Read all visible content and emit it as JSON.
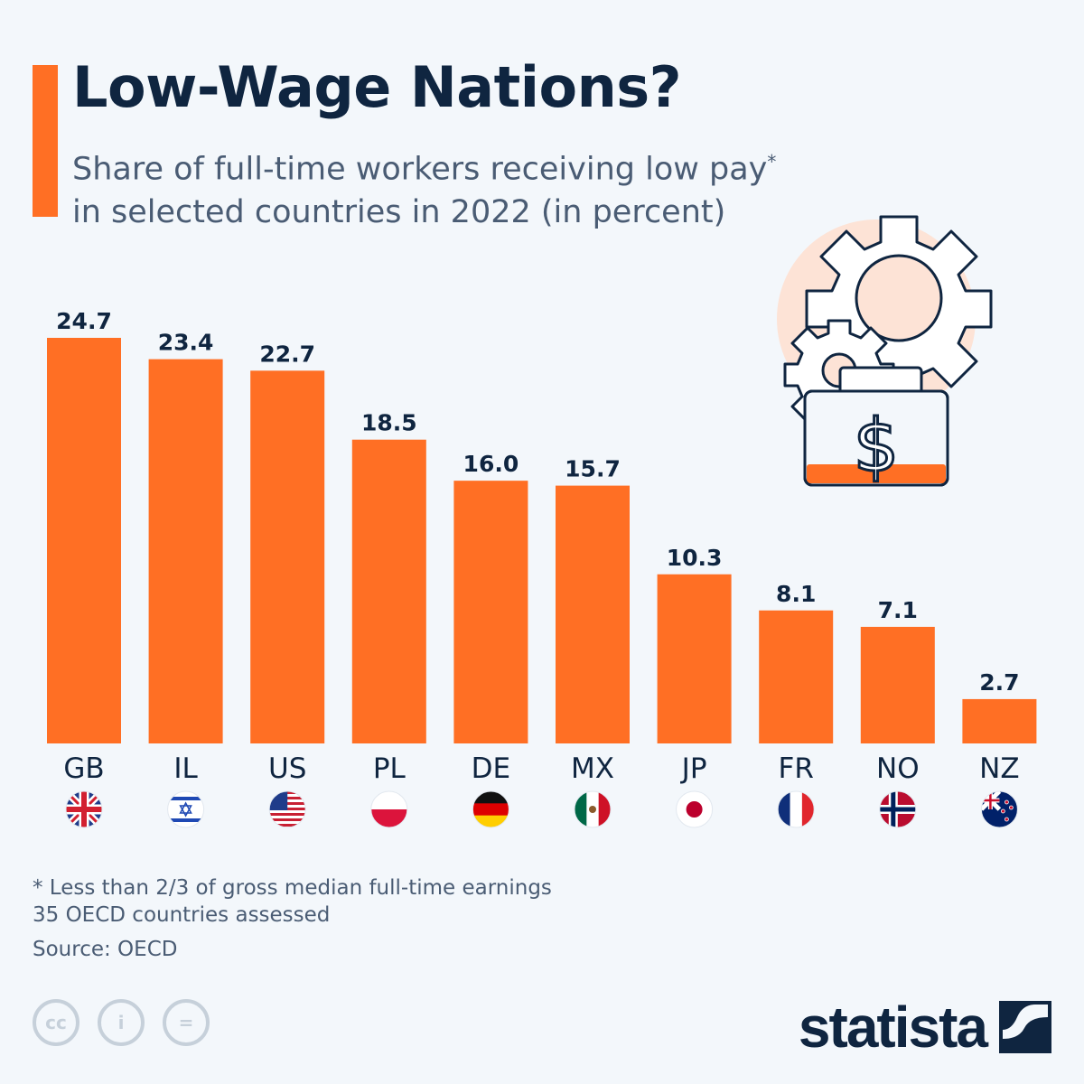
{
  "title": "Low-Wage Nations?",
  "subtitle_line1": "Share of full-time workers receiving low pay",
  "subtitle_asterisk": "*",
  "subtitle_line2": "in selected countries in 2022 (in percent)",
  "colors": {
    "bar": "#ff6f24",
    "text": "#0f2540",
    "background": "#f3f7fb",
    "accent": "#ff6f24"
  },
  "chart_data": {
    "type": "bar",
    "title": "Low-Wage Nations?",
    "categories": [
      "GB",
      "IL",
      "US",
      "PL",
      "DE",
      "MX",
      "JP",
      "FR",
      "NO",
      "NZ"
    ],
    "values": [
      24.7,
      23.4,
      22.7,
      18.5,
      16.0,
      15.7,
      10.3,
      8.1,
      7.1,
      2.7
    ],
    "value_labels": [
      "24.7",
      "23.4",
      "22.7",
      "18.5",
      "16.0",
      "15.7",
      "10.3",
      "8.1",
      "7.1",
      "2.7"
    ],
    "flags": [
      "uk-flag-icon",
      "israel-flag-icon",
      "usa-flag-icon",
      "poland-flag-icon",
      "germany-flag-icon",
      "mexico-flag-icon",
      "japan-flag-icon",
      "france-flag-icon",
      "norway-flag-icon",
      "new-zealand-flag-icon"
    ],
    "xlabel": "",
    "ylabel": "",
    "ylim": [
      0,
      25
    ],
    "grid": false,
    "legend": "none"
  },
  "illustration": "gears-and-money-box-icon",
  "footnotes": {
    "note": "* Less than 2/3 of gross median full-time earnings",
    "assessed": "35 OECD countries assessed",
    "source": "Source: OECD"
  },
  "license_icons": [
    "cc-icon",
    "attribution-icon",
    "no-derivatives-icon"
  ],
  "license_labels": [
    "cc",
    "i",
    "="
  ],
  "brand": "statista"
}
